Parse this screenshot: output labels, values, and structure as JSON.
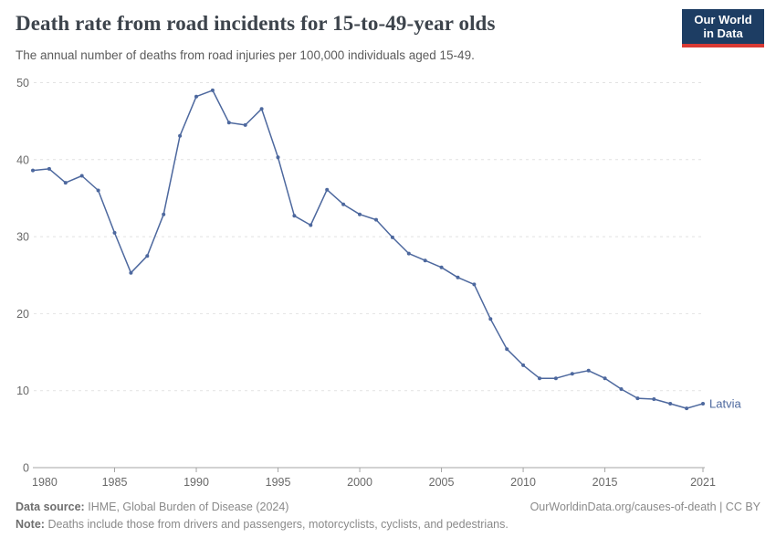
{
  "header": {
    "title": "Death rate from road incidents for 15-to-49-year olds",
    "subtitle": "The annual number of deaths from road injuries per 100,000 individuals aged 15-49.",
    "logo": {
      "line1": "Our World",
      "line2": "in Data",
      "bg_color": "#1d3d63",
      "accent_color": "#d93a34"
    }
  },
  "chart_data": {
    "type": "line",
    "title": "Death rate from road incidents for 15-to-49-year olds",
    "x": [
      1980,
      1981,
      1982,
      1983,
      1984,
      1985,
      1986,
      1987,
      1988,
      1989,
      1990,
      1991,
      1992,
      1993,
      1994,
      1995,
      1996,
      1997,
      1998,
      1999,
      2000,
      2001,
      2002,
      2003,
      2004,
      2005,
      2006,
      2007,
      2008,
      2009,
      2010,
      2011,
      2012,
      2013,
      2014,
      2015,
      2016,
      2017,
      2018,
      2019,
      2020,
      2021
    ],
    "series": [
      {
        "name": "Latvia",
        "color": "#4d689e",
        "values": [
          38.6,
          38.8,
          37.0,
          37.9,
          36.0,
          30.5,
          25.3,
          27.5,
          32.9,
          43.1,
          48.2,
          49.0,
          44.8,
          44.5,
          46.6,
          40.3,
          32.7,
          31.5,
          36.1,
          34.2,
          32.9,
          32.2,
          29.9,
          27.8,
          26.9,
          26.0,
          24.7,
          23.8,
          19.3,
          15.4,
          13.3,
          11.6,
          11.6,
          12.2,
          12.6,
          11.6,
          10.2,
          9.0,
          8.9,
          8.3,
          7.7,
          8.3
        ]
      }
    ],
    "xlabel": "",
    "ylabel": "",
    "xlim": [
      1980,
      2021
    ],
    "ylim": [
      0,
      50
    ],
    "xticks": [
      1980,
      1985,
      1990,
      1995,
      2000,
      2005,
      2010,
      2015,
      2021
    ],
    "yticks": [
      0,
      10,
      20,
      30,
      40,
      50
    ],
    "grid": true,
    "legend_position": "end-of-line",
    "end_label": "Latvia",
    "colors": {
      "grid": "#e2e2e2",
      "axis": "#a5a5a5",
      "tick_label": "#696969"
    }
  },
  "footer": {
    "source_label": "Data source:",
    "source_text": "IHME, Global Burden of Disease (2024)",
    "link_text": "OurWorldinData.org/causes-of-death | CC BY",
    "note_label": "Note:",
    "note_text": "Deaths include those from drivers and passengers, motorcyclists, cyclists, and pedestrians."
  }
}
